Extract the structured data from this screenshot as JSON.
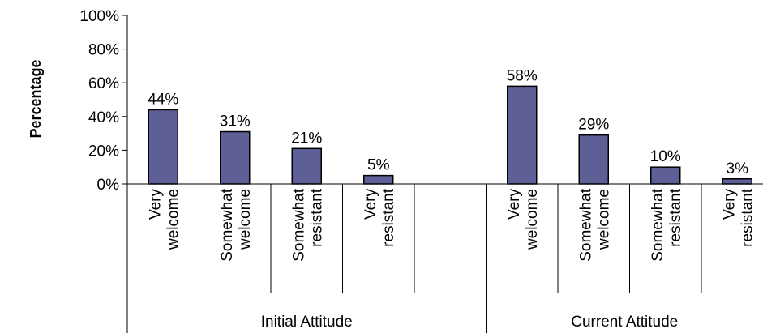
{
  "chart_data": {
    "type": "bar",
    "title": "",
    "ylabel": "Percentage",
    "xlabel": "",
    "ylim": [
      0,
      100
    ],
    "yticks": [
      "0%",
      "20%",
      "40%",
      "60%",
      "80%",
      "100%"
    ],
    "bar_color": "#5f5f97",
    "grid": false,
    "legend": "none",
    "groups": [
      {
        "name": "Initial Attitude",
        "categories": [
          [
            "Very",
            "welcome"
          ],
          [
            "Somewhat",
            "welcome"
          ],
          [
            "Somewhat",
            "resistant"
          ],
          [
            "Very",
            "resistant"
          ]
        ],
        "values": [
          44,
          31,
          21,
          5
        ],
        "labels": [
          "44%",
          "31%",
          "21%",
          "5%"
        ]
      },
      {
        "name": "Current Attitude",
        "categories": [
          [
            "Very",
            "welcome"
          ],
          [
            "Somewhat",
            "welcome"
          ],
          [
            "Somewhat",
            "resistant"
          ],
          [
            "Very",
            "resistant"
          ]
        ],
        "values": [
          58,
          29,
          10,
          3
        ],
        "labels": [
          "58%",
          "29%",
          "10%",
          "3%"
        ]
      }
    ]
  }
}
